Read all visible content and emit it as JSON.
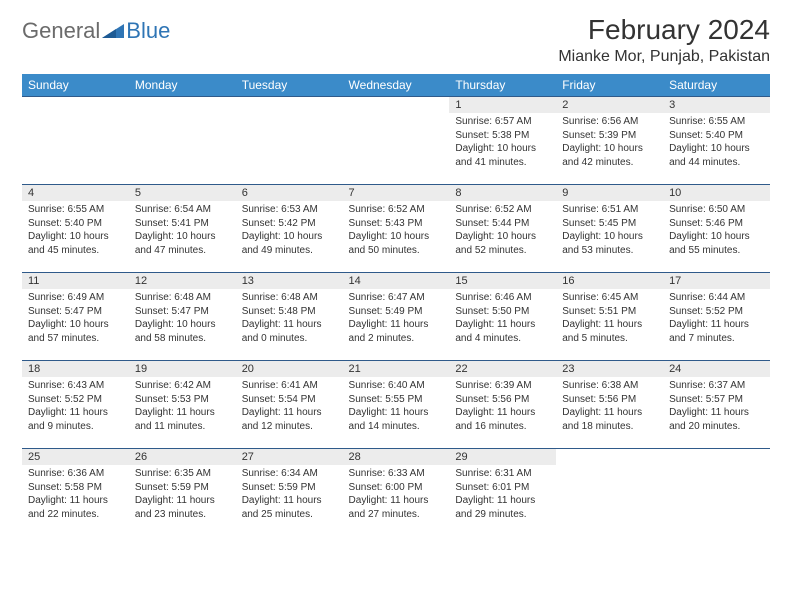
{
  "logo": {
    "general": "General",
    "blue": "Blue"
  },
  "header": {
    "title": "February 2024",
    "location": "Mianke Mor, Punjab, Pakistan"
  },
  "colors": {
    "header_bg": "#3b8bc9",
    "header_text": "#ffffff",
    "daynum_bg": "#ececec",
    "rule": "#2f5a8a",
    "text": "#333333",
    "logo_gray": "#6b6b6b",
    "logo_blue": "#2f75b5"
  },
  "weekdays": [
    "Sunday",
    "Monday",
    "Tuesday",
    "Wednesday",
    "Thursday",
    "Friday",
    "Saturday"
  ],
  "first_weekday_index": 4,
  "days": [
    {
      "n": "1",
      "sunrise": "Sunrise: 6:57 AM",
      "sunset": "Sunset: 5:38 PM",
      "daylight": "Daylight: 10 hours and 41 minutes."
    },
    {
      "n": "2",
      "sunrise": "Sunrise: 6:56 AM",
      "sunset": "Sunset: 5:39 PM",
      "daylight": "Daylight: 10 hours and 42 minutes."
    },
    {
      "n": "3",
      "sunrise": "Sunrise: 6:55 AM",
      "sunset": "Sunset: 5:40 PM",
      "daylight": "Daylight: 10 hours and 44 minutes."
    },
    {
      "n": "4",
      "sunrise": "Sunrise: 6:55 AM",
      "sunset": "Sunset: 5:40 PM",
      "daylight": "Daylight: 10 hours and 45 minutes."
    },
    {
      "n": "5",
      "sunrise": "Sunrise: 6:54 AM",
      "sunset": "Sunset: 5:41 PM",
      "daylight": "Daylight: 10 hours and 47 minutes."
    },
    {
      "n": "6",
      "sunrise": "Sunrise: 6:53 AM",
      "sunset": "Sunset: 5:42 PM",
      "daylight": "Daylight: 10 hours and 49 minutes."
    },
    {
      "n": "7",
      "sunrise": "Sunrise: 6:52 AM",
      "sunset": "Sunset: 5:43 PM",
      "daylight": "Daylight: 10 hours and 50 minutes."
    },
    {
      "n": "8",
      "sunrise": "Sunrise: 6:52 AM",
      "sunset": "Sunset: 5:44 PM",
      "daylight": "Daylight: 10 hours and 52 minutes."
    },
    {
      "n": "9",
      "sunrise": "Sunrise: 6:51 AM",
      "sunset": "Sunset: 5:45 PM",
      "daylight": "Daylight: 10 hours and 53 minutes."
    },
    {
      "n": "10",
      "sunrise": "Sunrise: 6:50 AM",
      "sunset": "Sunset: 5:46 PM",
      "daylight": "Daylight: 10 hours and 55 minutes."
    },
    {
      "n": "11",
      "sunrise": "Sunrise: 6:49 AM",
      "sunset": "Sunset: 5:47 PM",
      "daylight": "Daylight: 10 hours and 57 minutes."
    },
    {
      "n": "12",
      "sunrise": "Sunrise: 6:48 AM",
      "sunset": "Sunset: 5:47 PM",
      "daylight": "Daylight: 10 hours and 58 minutes."
    },
    {
      "n": "13",
      "sunrise": "Sunrise: 6:48 AM",
      "sunset": "Sunset: 5:48 PM",
      "daylight": "Daylight: 11 hours and 0 minutes."
    },
    {
      "n": "14",
      "sunrise": "Sunrise: 6:47 AM",
      "sunset": "Sunset: 5:49 PM",
      "daylight": "Daylight: 11 hours and 2 minutes."
    },
    {
      "n": "15",
      "sunrise": "Sunrise: 6:46 AM",
      "sunset": "Sunset: 5:50 PM",
      "daylight": "Daylight: 11 hours and 4 minutes."
    },
    {
      "n": "16",
      "sunrise": "Sunrise: 6:45 AM",
      "sunset": "Sunset: 5:51 PM",
      "daylight": "Daylight: 11 hours and 5 minutes."
    },
    {
      "n": "17",
      "sunrise": "Sunrise: 6:44 AM",
      "sunset": "Sunset: 5:52 PM",
      "daylight": "Daylight: 11 hours and 7 minutes."
    },
    {
      "n": "18",
      "sunrise": "Sunrise: 6:43 AM",
      "sunset": "Sunset: 5:52 PM",
      "daylight": "Daylight: 11 hours and 9 minutes."
    },
    {
      "n": "19",
      "sunrise": "Sunrise: 6:42 AM",
      "sunset": "Sunset: 5:53 PM",
      "daylight": "Daylight: 11 hours and 11 minutes."
    },
    {
      "n": "20",
      "sunrise": "Sunrise: 6:41 AM",
      "sunset": "Sunset: 5:54 PM",
      "daylight": "Daylight: 11 hours and 12 minutes."
    },
    {
      "n": "21",
      "sunrise": "Sunrise: 6:40 AM",
      "sunset": "Sunset: 5:55 PM",
      "daylight": "Daylight: 11 hours and 14 minutes."
    },
    {
      "n": "22",
      "sunrise": "Sunrise: 6:39 AM",
      "sunset": "Sunset: 5:56 PM",
      "daylight": "Daylight: 11 hours and 16 minutes."
    },
    {
      "n": "23",
      "sunrise": "Sunrise: 6:38 AM",
      "sunset": "Sunset: 5:56 PM",
      "daylight": "Daylight: 11 hours and 18 minutes."
    },
    {
      "n": "24",
      "sunrise": "Sunrise: 6:37 AM",
      "sunset": "Sunset: 5:57 PM",
      "daylight": "Daylight: 11 hours and 20 minutes."
    },
    {
      "n": "25",
      "sunrise": "Sunrise: 6:36 AM",
      "sunset": "Sunset: 5:58 PM",
      "daylight": "Daylight: 11 hours and 22 minutes."
    },
    {
      "n": "26",
      "sunrise": "Sunrise: 6:35 AM",
      "sunset": "Sunset: 5:59 PM",
      "daylight": "Daylight: 11 hours and 23 minutes."
    },
    {
      "n": "27",
      "sunrise": "Sunrise: 6:34 AM",
      "sunset": "Sunset: 5:59 PM",
      "daylight": "Daylight: 11 hours and 25 minutes."
    },
    {
      "n": "28",
      "sunrise": "Sunrise: 6:33 AM",
      "sunset": "Sunset: 6:00 PM",
      "daylight": "Daylight: 11 hours and 27 minutes."
    },
    {
      "n": "29",
      "sunrise": "Sunrise: 6:31 AM",
      "sunset": "Sunset: 6:01 PM",
      "daylight": "Daylight: 11 hours and 29 minutes."
    }
  ]
}
